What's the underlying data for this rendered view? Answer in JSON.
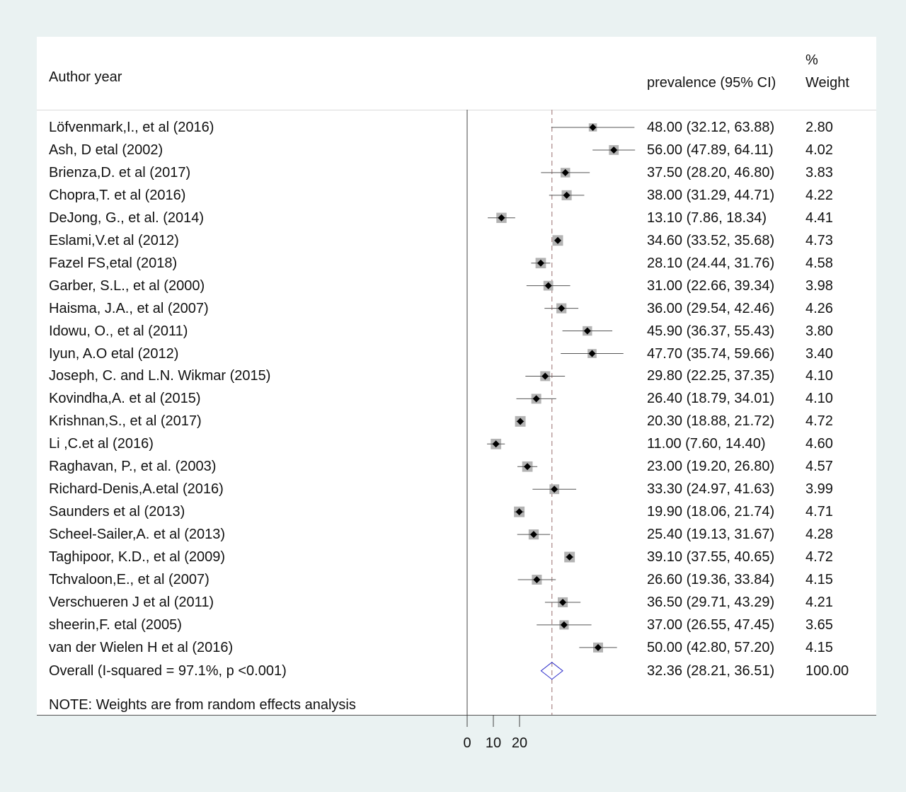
{
  "chart_data": {
    "type": "forest",
    "headers": {
      "study": "Author year",
      "effect": "prevalence (95% CI)",
      "weight_line1": "%",
      "weight_line2": "Weight"
    },
    "x_axis": {
      "ticks": [
        0,
        10,
        20
      ],
      "tick_labels": [
        "0",
        "10",
        "20"
      ],
      "range": [
        0,
        64.11
      ]
    },
    "overall_line": 32.36,
    "studies": [
      {
        "label": "Löfvenmark,I., et al (2016)",
        "est": 48.0,
        "lo": 32.12,
        "hi": 63.88,
        "ci_text": "48.00 (32.12, 63.88)",
        "weight": "2.80"
      },
      {
        "label": "Ash, D etal  (2002)",
        "est": 56.0,
        "lo": 47.89,
        "hi": 64.11,
        "ci_text": "56.00 (47.89, 64.11)",
        "weight": "4.02"
      },
      {
        "label": "Brienza,D. et al (2017)",
        "est": 37.5,
        "lo": 28.2,
        "hi": 46.8,
        "ci_text": "37.50 (28.20, 46.80)",
        "weight": "3.83"
      },
      {
        "label": "Chopra,T. et al (2016)",
        "est": 38.0,
        "lo": 31.29,
        "hi": 44.71,
        "ci_text": "38.00 (31.29, 44.71)",
        "weight": "4.22"
      },
      {
        "label": "DeJong, G., et al. (2014)",
        "est": 13.1,
        "lo": 7.86,
        "hi": 18.34,
        "ci_text": "13.10 (7.86, 18.34)",
        "weight": "4.41"
      },
      {
        "label": "Eslami,V.et al (2012)",
        "est": 34.6,
        "lo": 33.52,
        "hi": 35.68,
        "ci_text": "34.60 (33.52, 35.68)",
        "weight": "4.73"
      },
      {
        "label": "Fazel FS,etal (2018)",
        "est": 28.1,
        "lo": 24.44,
        "hi": 31.76,
        "ci_text": "28.10 (24.44, 31.76)",
        "weight": "4.58"
      },
      {
        "label": "Garber, S.L., et al (2000)",
        "est": 31.0,
        "lo": 22.66,
        "hi": 39.34,
        "ci_text": "31.00 (22.66, 39.34)",
        "weight": "3.98"
      },
      {
        "label": "Haisma, J.A., et al  (2007)",
        "est": 36.0,
        "lo": 29.54,
        "hi": 42.46,
        "ci_text": "36.00 (29.54, 42.46)",
        "weight": "4.26"
      },
      {
        "label": "Idowu, O., et al  (2011)",
        "est": 45.9,
        "lo": 36.37,
        "hi": 55.43,
        "ci_text": "45.90 (36.37, 55.43)",
        "weight": "3.80"
      },
      {
        "label": "Iyun, A.O etal  (2012)",
        "est": 47.7,
        "lo": 35.74,
        "hi": 59.66,
        "ci_text": "47.70 (35.74, 59.66)",
        "weight": "3.40"
      },
      {
        "label": "Joseph, C. and L.N. Wikmar  (2015)",
        "est": 29.8,
        "lo": 22.25,
        "hi": 37.35,
        "ci_text": "29.80 (22.25, 37.35)",
        "weight": "4.10"
      },
      {
        "label": "Kovindha,A. et al (2015)",
        "est": 26.4,
        "lo": 18.79,
        "hi": 34.01,
        "ci_text": "26.40 (18.79, 34.01)",
        "weight": "4.10"
      },
      {
        "label": "Krishnan,S., et al  (2017)",
        "est": 20.3,
        "lo": 18.88,
        "hi": 21.72,
        "ci_text": "20.30 (18.88, 21.72)",
        "weight": "4.72"
      },
      {
        "label": "Li ,C.et al (2016)",
        "est": 11.0,
        "lo": 7.6,
        "hi": 14.4,
        "ci_text": "11.00 (7.60, 14.40)",
        "weight": "4.60"
      },
      {
        "label": "Raghavan, P., et al. (2003)",
        "est": 23.0,
        "lo": 19.2,
        "hi": 26.8,
        "ci_text": "23.00 (19.20, 26.80)",
        "weight": "4.57"
      },
      {
        "label": "Richard-Denis,A.etal (2016)",
        "est": 33.3,
        "lo": 24.97,
        "hi": 41.63,
        "ci_text": "33.30 (24.97, 41.63)",
        "weight": "3.99"
      },
      {
        "label": "Saunders et al (2013)",
        "est": 19.9,
        "lo": 18.06,
        "hi": 21.74,
        "ci_text": "19.90 (18.06, 21.74)",
        "weight": "4.71"
      },
      {
        "label": "Scheel-Sailer,A. et al (2013)",
        "est": 25.4,
        "lo": 19.13,
        "hi": 31.67,
        "ci_text": "25.40 (19.13, 31.67)",
        "weight": "4.28"
      },
      {
        "label": "Taghipoor, K.D., et al (2009)",
        "est": 39.1,
        "lo": 37.55,
        "hi": 40.65,
        "ci_text": "39.10 (37.55, 40.65)",
        "weight": "4.72"
      },
      {
        "label": "Tchvaloon,E., et al (2007)",
        "est": 26.6,
        "lo": 19.36,
        "hi": 33.84,
        "ci_text": "26.60 (19.36, 33.84)",
        "weight": "4.15"
      },
      {
        "label": "Verschueren J et al (2011)",
        "est": 36.5,
        "lo": 29.71,
        "hi": 43.29,
        "ci_text": "36.50 (29.71, 43.29)",
        "weight": "4.21"
      },
      {
        "label": "sheerin,F. etal (2005)",
        "est": 37.0,
        "lo": 26.55,
        "hi": 47.45,
        "ci_text": "37.00 (26.55, 47.45)",
        "weight": "3.65"
      },
      {
        "label": "van der Wielen H et al (2016)",
        "est": 50.0,
        "lo": 42.8,
        "hi": 57.2,
        "ci_text": "50.00 (42.80, 57.20)",
        "weight": "4.15"
      }
    ],
    "overall": {
      "label": "Overall  (I-squared = 97.1%, p <0.001)",
      "est": 32.36,
      "lo": 28.21,
      "hi": 36.51,
      "ci_text": "32.36 (28.21, 36.51)",
      "weight": "100.00"
    },
    "note": "NOTE: Weights are from random effects analysis"
  },
  "colors": {
    "background": "#eaf2f2",
    "panel": "#ffffff",
    "weight_box": "#b3b3b3",
    "point": "#000000",
    "overall_diamond": "#3333cc",
    "overall_line": "#b09090"
  }
}
